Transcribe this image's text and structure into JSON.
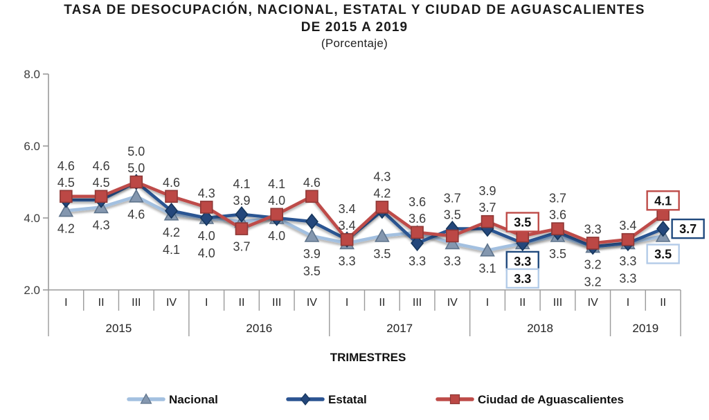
{
  "title": {
    "line1": "TASA DE DESOCUPACIÓN,  NACIONAL, ESTATAL Y CIUDAD DE AGUASCALIENTES",
    "line2": "DE 2015 A 2019",
    "subtitle": "(Porcentaje)"
  },
  "chart_data": {
    "type": "line",
    "title": "TASA DE DESOCUPACIÓN, NACIONAL, ESTATAL Y CIUDAD DE AGUASCALIENTES DE 2015 A 2019 (Porcentaje)",
    "x_axis_title": "TRIMESTRES",
    "y_tick_labels": [
      "8.0",
      "6.0",
      "4.0",
      "2.0"
    ],
    "y_ticks": [
      8.0,
      6.0,
      4.0,
      2.0
    ],
    "ylim": [
      2.0,
      8.0
    ],
    "grid": false,
    "legend_position": "bottom",
    "years": [
      {
        "label": "2015",
        "quarters": [
          "I",
          "II",
          "III",
          "IV"
        ]
      },
      {
        "label": "2016",
        "quarters": [
          "I",
          "II",
          "III",
          "IV"
        ]
      },
      {
        "label": "2017",
        "quarters": [
          "I",
          "II",
          "III",
          "IV"
        ]
      },
      {
        "label": "2018",
        "quarters": [
          "I",
          "II",
          "III",
          "IV"
        ]
      },
      {
        "label": "2019",
        "quarters": [
          "I",
          "II"
        ]
      }
    ],
    "categories": [
      "2015-I",
      "2015-II",
      "2015-III",
      "2015-IV",
      "2016-I",
      "2016-II",
      "2016-III",
      "2016-IV",
      "2017-I",
      "2017-II",
      "2017-III",
      "2017-IV",
      "2018-I",
      "2018-II",
      "2018-III",
      "2018-IV",
      "2019-I",
      "2019-II"
    ],
    "series": [
      {
        "key": "nacional",
        "name": "Nacional",
        "marker": "triangle",
        "line_color": "#A3C0E0",
        "marker_fill": "#8497AF",
        "marker_stroke": "#5F748C",
        "box_border_color": "#B3CBE8",
        "values": [
          4.2,
          4.3,
          4.6,
          4.1,
          4.0,
          3.9,
          4.0,
          3.5,
          3.3,
          3.5,
          3.6,
          3.3,
          3.1,
          3.3,
          3.5,
          3.2,
          3.3,
          3.5
        ]
      },
      {
        "key": "estatal",
        "name": "Estatal",
        "marker": "diamond",
        "line_color": "#2B5492",
        "marker_fill": "#24477B",
        "marker_stroke": "#16365C",
        "box_border_color": "#1F497D",
        "values": [
          4.5,
          4.5,
          5.0,
          4.2,
          4.0,
          4.1,
          4.0,
          3.9,
          3.4,
          4.2,
          3.3,
          3.7,
          3.7,
          3.3,
          3.6,
          3.2,
          3.3,
          3.7
        ]
      },
      {
        "key": "ciudad",
        "name": "Ciudad de Aguascalientes",
        "marker": "square",
        "line_color": "#BE4B48",
        "marker_fill": "#BC4845",
        "marker_stroke": "#8E3836",
        "box_border_color": "#BE4B48",
        "values": [
          4.6,
          4.6,
          5.0,
          4.6,
          4.3,
          3.7,
          4.1,
          4.6,
          3.4,
          4.3,
          3.6,
          3.5,
          3.9,
          3.5,
          3.7,
          3.3,
          3.4,
          4.1
        ]
      }
    ],
    "label_layout": [
      {
        "above": [
          "ciudad",
          "estatal"
        ],
        "below": [
          "nacional"
        ]
      },
      {
        "above": [
          "ciudad",
          "estatal"
        ],
        "below": [
          "nacional"
        ]
      },
      {
        "above": [
          "ciudad",
          "estatal"
        ],
        "below": [
          "nacional"
        ]
      },
      {
        "above": [
          "ciudad"
        ],
        "below": [
          "estatal",
          "nacional"
        ]
      },
      {
        "above": [
          "ciudad"
        ],
        "below": [
          "estatal",
          "nacional"
        ]
      },
      {
        "above": [
          "estatal",
          "nacional"
        ],
        "below": [
          "ciudad"
        ]
      },
      {
        "above": [
          "ciudad",
          "estatal"
        ],
        "below": [
          "nacional"
        ]
      },
      {
        "above": [
          "ciudad"
        ],
        "below": [
          "estatal",
          "nacional"
        ]
      },
      {
        "above": [
          "ciudad",
          "estatal"
        ],
        "below": [
          "nacional"
        ]
      },
      {
        "above": [
          "ciudad",
          "estatal"
        ],
        "below": [
          "nacional"
        ]
      },
      {
        "above": [
          "ciudad",
          "nacional"
        ],
        "below": [
          "estatal"
        ]
      },
      {
        "above": [
          "estatal",
          "ciudad"
        ],
        "below": [
          "nacional"
        ]
      },
      {
        "above": [
          "ciudad",
          "estatal"
        ],
        "below": [
          "nacional"
        ]
      },
      {
        "above": [
          "ciudad"
        ],
        "below": [
          "estatal",
          "nacional"
        ],
        "boxed": true
      },
      {
        "above": [
          "ciudad",
          "estatal"
        ],
        "below": [
          "nacional"
        ]
      },
      {
        "above": [
          "ciudad"
        ],
        "below": [
          "estatal",
          "nacional"
        ]
      },
      {
        "above": [
          "ciudad"
        ],
        "below": [
          "estatal",
          "nacional"
        ]
      },
      {
        "above": [
          "ciudad"
        ],
        "right": [
          "estatal"
        ],
        "below": [
          "nacional"
        ],
        "boxed": true
      }
    ],
    "axis_color": "#9a9a9a",
    "label_text_color": "#3b3b3b"
  }
}
